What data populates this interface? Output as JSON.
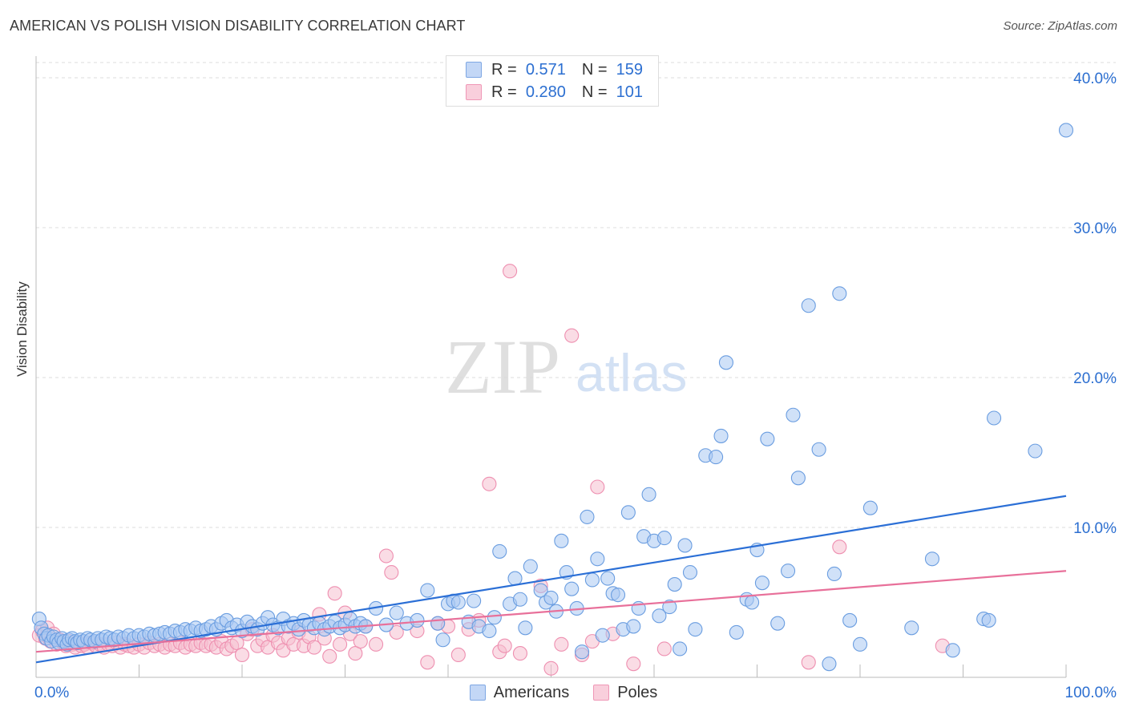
{
  "header": {
    "title": "AMERICAN VS POLISH VISION DISABILITY CORRELATION CHART",
    "source": "Source: ZipAtlas.com"
  },
  "watermark": {
    "zip": "ZIP",
    "atlas": "atlas"
  },
  "legend": {
    "r_label": "R =",
    "n_label": "N =",
    "americans": {
      "r": "0.571",
      "n": "159"
    },
    "poles": {
      "r": "0.280",
      "n": "101"
    }
  },
  "colors": {
    "americans_fill": "#a9c8f2",
    "americans_stroke": "#6a9de0",
    "americans_line": "#2b6fd6",
    "poles_fill": "#f6bfd0",
    "poles_stroke": "#ee8fb0",
    "poles_line": "#e8709a",
    "tick_label": "#2c6fd1",
    "grid": "#dcdcdc"
  },
  "chart_data": {
    "type": "scatter",
    "title": "AMERICAN VS POLISH VISION DISABILITY CORRELATION CHART",
    "xlabel": "",
    "ylabel": "Vision Disability",
    "xlim": [
      0,
      100
    ],
    "ylim": [
      0,
      41
    ],
    "x_tick_labels": [
      "0.0%",
      "100.0%"
    ],
    "y_ticks": [
      10,
      20,
      30,
      40
    ],
    "y_tick_labels": [
      "10.0%",
      "20.0%",
      "30.0%",
      "40.0%"
    ],
    "grid": true,
    "legend_position": "top-center and bottom",
    "series": [
      {
        "name": "Americans",
        "r": 0.571,
        "n": 159,
        "trend": {
          "x": [
            0,
            100
          ],
          "y": [
            1.0,
            12.1
          ]
        },
        "points": [
          [
            0.3,
            3.9
          ],
          [
            0.5,
            3.3
          ],
          [
            0.8,
            2.9
          ],
          [
            1.0,
            2.6
          ],
          [
            1.2,
            2.8
          ],
          [
            1.5,
            2.4
          ],
          [
            1.7,
            2.7
          ],
          [
            2.0,
            2.5
          ],
          [
            2.2,
            2.3
          ],
          [
            2.5,
            2.6
          ],
          [
            2.7,
            2.4
          ],
          [
            3.0,
            2.2
          ],
          [
            3.2,
            2.5
          ],
          [
            3.5,
            2.6
          ],
          [
            3.8,
            2.4
          ],
          [
            4.0,
            2.3
          ],
          [
            4.3,
            2.5
          ],
          [
            4.6,
            2.4
          ],
          [
            5.0,
            2.6
          ],
          [
            5.3,
            2.5
          ],
          [
            5.7,
            2.4
          ],
          [
            6.0,
            2.6
          ],
          [
            6.4,
            2.5
          ],
          [
            6.8,
            2.7
          ],
          [
            7.2,
            2.6
          ],
          [
            7.6,
            2.5
          ],
          [
            8.0,
            2.7
          ],
          [
            8.5,
            2.6
          ],
          [
            9.0,
            2.8
          ],
          [
            9.5,
            2.6
          ],
          [
            10.0,
            2.8
          ],
          [
            10.5,
            2.7
          ],
          [
            11.0,
            2.9
          ],
          [
            11.5,
            2.8
          ],
          [
            12.0,
            2.9
          ],
          [
            12.5,
            3.0
          ],
          [
            13.0,
            2.9
          ],
          [
            13.5,
            3.1
          ],
          [
            14.0,
            3.0
          ],
          [
            14.5,
            3.2
          ],
          [
            15.0,
            3.1
          ],
          [
            15.5,
            3.3
          ],
          [
            16.0,
            3.1
          ],
          [
            16.5,
            3.2
          ],
          [
            17.0,
            3.4
          ],
          [
            17.5,
            3.2
          ],
          [
            18.0,
            3.6
          ],
          [
            18.5,
            3.8
          ],
          [
            19.0,
            3.3
          ],
          [
            19.5,
            3.5
          ],
          [
            20.0,
            3.1
          ],
          [
            20.5,
            3.7
          ],
          [
            21.0,
            3.4
          ],
          [
            21.5,
            3.2
          ],
          [
            22.0,
            3.6
          ],
          [
            22.5,
            4.0
          ],
          [
            23.0,
            3.5
          ],
          [
            23.5,
            3.3
          ],
          [
            24.0,
            3.9
          ],
          [
            24.5,
            3.4
          ],
          [
            25.0,
            3.6
          ],
          [
            25.5,
            3.2
          ],
          [
            26.0,
            3.8
          ],
          [
            26.5,
            3.5
          ],
          [
            27.0,
            3.3
          ],
          [
            27.5,
            3.6
          ],
          [
            28.0,
            3.2
          ],
          [
            28.5,
            3.4
          ],
          [
            29.0,
            3.7
          ],
          [
            29.5,
            3.3
          ],
          [
            30.0,
            3.5
          ],
          [
            30.5,
            3.9
          ],
          [
            31.0,
            3.4
          ],
          [
            31.5,
            3.6
          ],
          [
            32.0,
            3.4
          ],
          [
            33.0,
            4.6
          ],
          [
            34.0,
            3.5
          ],
          [
            35.0,
            4.3
          ],
          [
            36.0,
            3.6
          ],
          [
            37.0,
            3.8
          ],
          [
            38.0,
            5.8
          ],
          [
            39.0,
            3.6
          ],
          [
            39.5,
            2.5
          ],
          [
            40.0,
            4.9
          ],
          [
            40.5,
            5.1
          ],
          [
            41.0,
            5.0
          ],
          [
            42.0,
            3.7
          ],
          [
            42.5,
            5.1
          ],
          [
            43.0,
            3.4
          ],
          [
            44.0,
            3.1
          ],
          [
            44.5,
            4.0
          ],
          [
            45.0,
            8.4
          ],
          [
            46.0,
            4.9
          ],
          [
            46.5,
            6.6
          ],
          [
            47.0,
            5.2
          ],
          [
            47.5,
            3.3
          ],
          [
            48.0,
            7.4
          ],
          [
            49.0,
            5.8
          ],
          [
            49.5,
            5.0
          ],
          [
            50.0,
            5.3
          ],
          [
            50.5,
            4.4
          ],
          [
            51.0,
            9.1
          ],
          [
            51.5,
            7.0
          ],
          [
            52.0,
            5.9
          ],
          [
            52.5,
            4.6
          ],
          [
            53.0,
            1.7
          ],
          [
            53.5,
            10.7
          ],
          [
            54.0,
            6.5
          ],
          [
            54.5,
            7.9
          ],
          [
            55.0,
            2.8
          ],
          [
            55.5,
            6.6
          ],
          [
            56.0,
            5.6
          ],
          [
            56.5,
            5.5
          ],
          [
            57.0,
            3.2
          ],
          [
            57.5,
            11.0
          ],
          [
            58.0,
            3.4
          ],
          [
            58.5,
            4.6
          ],
          [
            59.0,
            9.4
          ],
          [
            59.5,
            12.2
          ],
          [
            60.0,
            9.1
          ],
          [
            60.5,
            4.1
          ],
          [
            61.0,
            9.3
          ],
          [
            61.5,
            4.7
          ],
          [
            62.0,
            6.2
          ],
          [
            62.5,
            1.9
          ],
          [
            63.0,
            8.8
          ],
          [
            63.5,
            7.0
          ],
          [
            64.0,
            3.2
          ],
          [
            65.0,
            14.8
          ],
          [
            66.0,
            14.7
          ],
          [
            66.5,
            16.1
          ],
          [
            67.0,
            21.0
          ],
          [
            68.0,
            3.0
          ],
          [
            69.0,
            5.2
          ],
          [
            69.5,
            5.0
          ],
          [
            70.0,
            8.5
          ],
          [
            70.5,
            6.3
          ],
          [
            71.0,
            15.9
          ],
          [
            72.0,
            3.6
          ],
          [
            73.0,
            7.1
          ],
          [
            73.5,
            17.5
          ],
          [
            74.0,
            13.3
          ],
          [
            75.0,
            24.8
          ],
          [
            76.0,
            15.2
          ],
          [
            77.0,
            0.9
          ],
          [
            77.5,
            6.9
          ],
          [
            78.0,
            25.6
          ],
          [
            79.0,
            3.8
          ],
          [
            80.0,
            2.2
          ],
          [
            81.0,
            11.3
          ],
          [
            85.0,
            3.3
          ],
          [
            87.0,
            7.9
          ],
          [
            89.0,
            1.8
          ],
          [
            92.0,
            3.9
          ],
          [
            92.5,
            3.8
          ],
          [
            93.0,
            17.3
          ],
          [
            97.0,
            15.1
          ],
          [
            100.0,
            36.5
          ]
        ]
      },
      {
        "name": "Poles",
        "r": 0.28,
        "n": 101,
        "trend": {
          "x": [
            0,
            100
          ],
          "y": [
            1.7,
            7.1
          ]
        },
        "points": [
          [
            0.3,
            2.8
          ],
          [
            0.6,
            3.1
          ],
          [
            0.9,
            2.6
          ],
          [
            1.1,
            3.3
          ],
          [
            1.4,
            2.4
          ],
          [
            1.7,
            2.9
          ],
          [
            2.0,
            2.2
          ],
          [
            2.3,
            2.5
          ],
          [
            2.6,
            2.3
          ],
          [
            2.9,
            2.1
          ],
          [
            3.2,
            2.4
          ],
          [
            3.5,
            2.2
          ],
          [
            3.8,
            2.0
          ],
          [
            4.1,
            2.3
          ],
          [
            4.4,
            2.1
          ],
          [
            4.7,
            2.2
          ],
          [
            5.0,
            2.0
          ],
          [
            5.4,
            2.3
          ],
          [
            5.8,
            2.1
          ],
          [
            6.2,
            2.2
          ],
          [
            6.6,
            2.0
          ],
          [
            7.0,
            2.2
          ],
          [
            7.4,
            2.1
          ],
          [
            7.8,
            2.3
          ],
          [
            8.2,
            2.0
          ],
          [
            8.6,
            2.2
          ],
          [
            9.0,
            2.1
          ],
          [
            9.5,
            2.0
          ],
          [
            10.0,
            2.2
          ],
          [
            10.5,
            2.0
          ],
          [
            11.0,
            2.3
          ],
          [
            11.5,
            2.1
          ],
          [
            12.0,
            2.2
          ],
          [
            12.5,
            2.0
          ],
          [
            13.0,
            2.2
          ],
          [
            13.5,
            2.1
          ],
          [
            14.0,
            2.3
          ],
          [
            14.5,
            2.0
          ],
          [
            15.0,
            2.2
          ],
          [
            15.5,
            2.1
          ],
          [
            16.0,
            2.3
          ],
          [
            16.5,
            2.1
          ],
          [
            17.0,
            2.2
          ],
          [
            17.5,
            2.0
          ],
          [
            18.0,
            2.4
          ],
          [
            18.5,
            1.9
          ],
          [
            19.0,
            2.1
          ],
          [
            19.5,
            2.3
          ],
          [
            20.0,
            1.5
          ],
          [
            20.5,
            2.9
          ],
          [
            21.0,
            3.2
          ],
          [
            21.5,
            2.1
          ],
          [
            22.0,
            2.5
          ],
          [
            22.5,
            2.0
          ],
          [
            23.0,
            2.8
          ],
          [
            23.5,
            2.3
          ],
          [
            24.0,
            1.8
          ],
          [
            24.5,
            2.6
          ],
          [
            25.0,
            2.2
          ],
          [
            25.5,
            3.0
          ],
          [
            26.0,
            2.1
          ],
          [
            26.5,
            2.7
          ],
          [
            27.0,
            2.0
          ],
          [
            27.5,
            4.2
          ],
          [
            28.0,
            2.6
          ],
          [
            28.5,
            1.4
          ],
          [
            29.0,
            5.6
          ],
          [
            29.5,
            2.2
          ],
          [
            30.0,
            4.3
          ],
          [
            30.5,
            2.9
          ],
          [
            31.0,
            1.6
          ],
          [
            31.5,
            2.4
          ],
          [
            32.0,
            3.4
          ],
          [
            33.0,
            2.2
          ],
          [
            34.0,
            8.1
          ],
          [
            34.5,
            7.0
          ],
          [
            35.0,
            3.0
          ],
          [
            37.0,
            3.1
          ],
          [
            38.0,
            1.0
          ],
          [
            39.0,
            3.6
          ],
          [
            40.0,
            3.4
          ],
          [
            41.0,
            1.5
          ],
          [
            42.0,
            3.2
          ],
          [
            43.0,
            3.8
          ],
          [
            44.0,
            12.9
          ],
          [
            45.0,
            1.7
          ],
          [
            45.5,
            2.1
          ],
          [
            46.0,
            27.1
          ],
          [
            47.0,
            1.6
          ],
          [
            49.0,
            6.1
          ],
          [
            50.0,
            0.6
          ],
          [
            51.0,
            2.2
          ],
          [
            52.0,
            22.8
          ],
          [
            53.0,
            1.5
          ],
          [
            54.0,
            2.4
          ],
          [
            54.5,
            12.7
          ],
          [
            56.0,
            2.9
          ],
          [
            58.0,
            0.9
          ],
          [
            61.0,
            1.9
          ],
          [
            75.0,
            1.0
          ],
          [
            78.0,
            8.7
          ],
          [
            88.0,
            2.1
          ]
        ]
      }
    ]
  },
  "bottom_legend": {
    "americans": "Americans",
    "poles": "Poles"
  }
}
